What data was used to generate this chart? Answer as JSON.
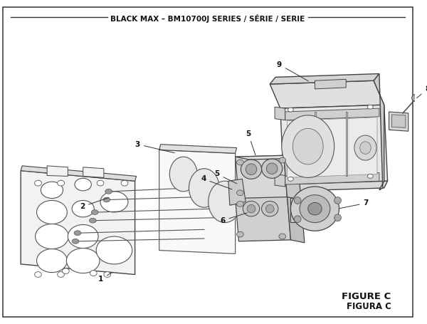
{
  "title": "BLACK MAX – BM10700J SERIES / SÉRIE / SERIE",
  "figure_label": "FIGURE C",
  "figure_label2": "FIGURA C",
  "bg_color": "#ffffff",
  "line_color": "#333333",
  "text_color": "#111111"
}
